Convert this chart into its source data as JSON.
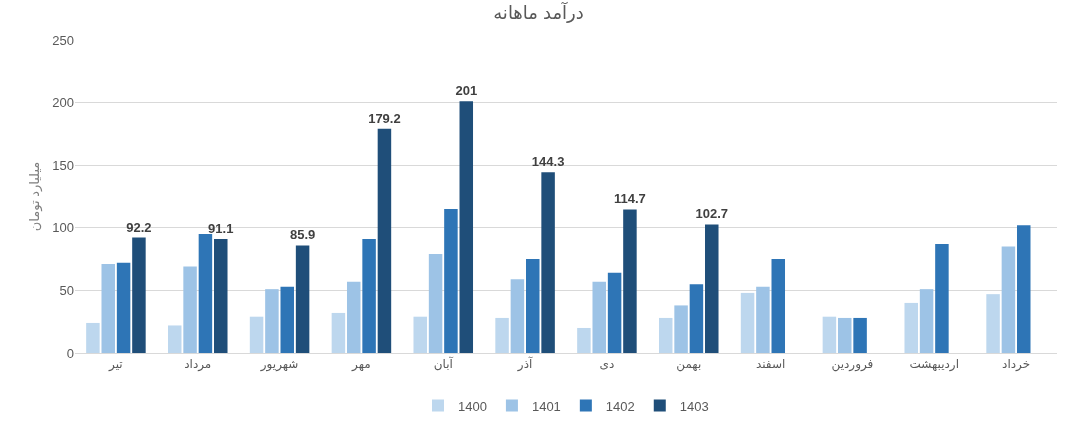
{
  "chart_data": {
    "type": "bar",
    "title": "درآمد ماهانه",
    "ylabel": "میلیارد تومان",
    "categories": [
      "تیر",
      "مرداد",
      "شهریور",
      "مهر",
      "آبان",
      "آذر",
      "دی",
      "بهمن",
      "اسفند",
      "فروردین",
      "اردیبهشت",
      "خرداد"
    ],
    "series": [
      {
        "name": "1400",
        "color": "#bdd7ee",
        "values": [
          24,
          22,
          29,
          32,
          29,
          28,
          20,
          28,
          48,
          29,
          40,
          47
        ]
      },
      {
        "name": "1401",
        "color": "#9dc3e6",
        "values": [
          71,
          69,
          51,
          57,
          79,
          59,
          57,
          38,
          53,
          28,
          51,
          85
        ]
      },
      {
        "name": "1402",
        "color": "#2e75b6",
        "values": [
          72,
          95,
          53,
          91,
          115,
          75,
          64,
          55,
          75,
          28,
          87,
          102
        ]
      },
      {
        "name": "1403",
        "color": "#1f4e79",
        "values": [
          92.2,
          91.1,
          85.9,
          179.2,
          201,
          144.3,
          114.7,
          102.7,
          null,
          null,
          null,
          null
        ],
        "value_labels": [
          "92.2",
          "91.1",
          "85.9",
          "179.2",
          "201",
          "144.3",
          "114.7",
          "102.7",
          null,
          null,
          null,
          null
        ]
      }
    ],
    "ylim": [
      0,
      250
    ],
    "yticks": [
      0,
      50,
      100,
      150,
      200,
      250
    ],
    "grid": "y",
    "legend": "bottom"
  }
}
